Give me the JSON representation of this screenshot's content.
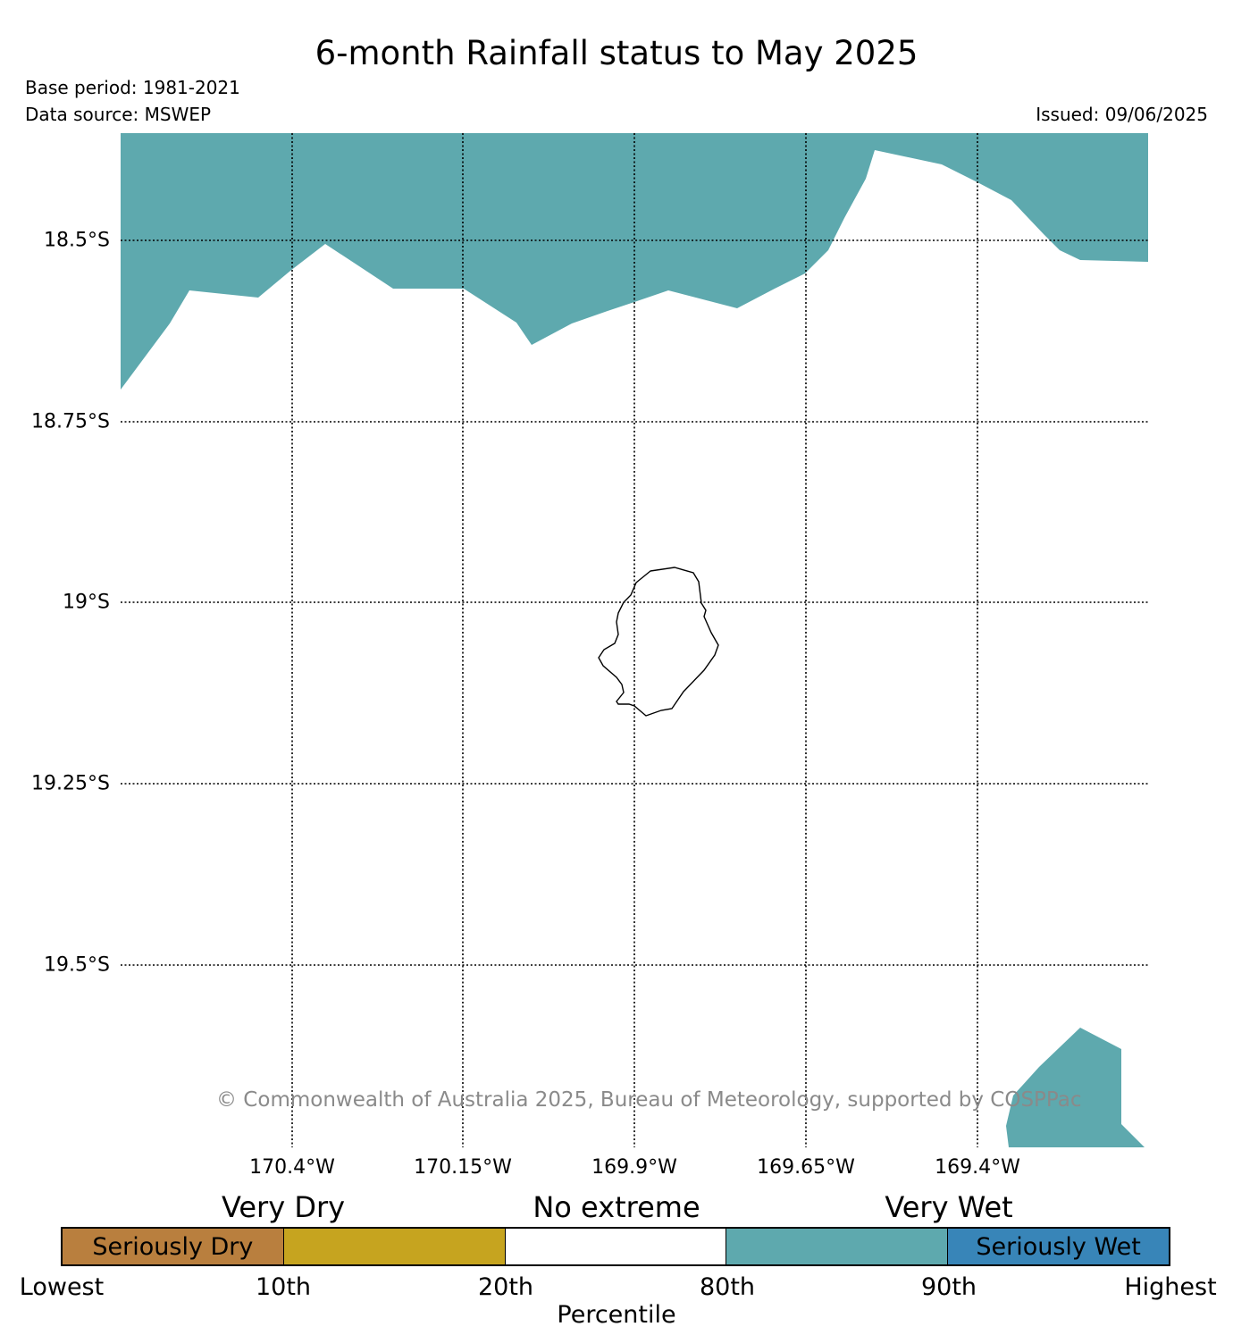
{
  "header": {
    "title": "6-month Rainfall status to May 2025",
    "base_period": "Base period: 1981-2021",
    "data_source": "Data source: MSWEP",
    "issued": "Issued: 09/06/2025"
  },
  "map": {
    "latitude_labels": [
      "18.5°S",
      "18.75°S",
      "19°S",
      "19.25°S",
      "19.5°S"
    ],
    "longitude_labels": [
      "170.4°W",
      "170.15°W",
      "169.9°W",
      "169.65°W",
      "169.4°W"
    ],
    "copyright": "© Commonwealth of Australia 2025, Bureau of Meteorology, supported by COSPPac",
    "shaded_category_color": "#5ea9ae",
    "coastline_color": "#000000"
  },
  "legend": {
    "category_headers": [
      "Very Dry",
      "No extreme",
      "Very Wet"
    ],
    "segments": [
      {
        "label": "Seriously Dry",
        "color": "#b97f3e"
      },
      {
        "label": "",
        "color": "#c6a41f"
      },
      {
        "label": "",
        "color": "#ffffff"
      },
      {
        "label": "",
        "color": "#5ea9ae"
      },
      {
        "label": "Seriously Wet",
        "color": "#3885b8"
      }
    ],
    "tick_labels": [
      "Lowest",
      "10th",
      "20th",
      "80th",
      "90th",
      "Highest"
    ],
    "axis_label": "Percentile"
  }
}
